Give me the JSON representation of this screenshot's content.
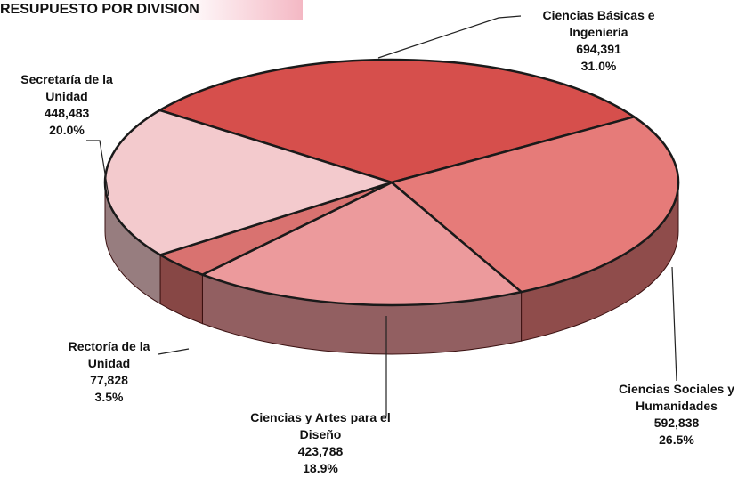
{
  "chart_data": {
    "type": "pie",
    "title": "RESUPUESTO POR DIVISION",
    "categories": [
      "Ciencias Básicas e Ingeniería",
      "Ciencias Sociales y Humanidades",
      "Ciencias y Artes para el Diseño",
      "Rectoría de la Unidad",
      "Secretaría de la Unidad"
    ],
    "values": [
      694391,
      592838,
      423788,
      77828,
      448483
    ],
    "value_labels": [
      "694,391",
      "592,838",
      "423,788",
      "77,828",
      "448,483"
    ],
    "percentages": [
      31.0,
      26.5,
      18.9,
      3.5,
      20.0
    ],
    "percentage_labels": [
      "31.0%",
      "26.5%",
      "18.9%",
      "3.5%",
      "20.0%"
    ],
    "colors": [
      "#d64f4c",
      "#e67b79",
      "#ec9a9c",
      "#d97270",
      "#f3cacd"
    ]
  }
}
